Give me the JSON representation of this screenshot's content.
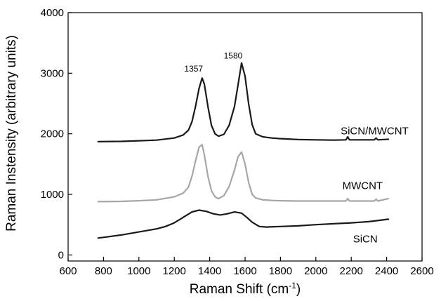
{
  "chart_data": {
    "type": "line",
    "title": "",
    "xlabel": "Raman Shift (cm",
    "xlabel_sup": "-1",
    "xlabel_end": ")",
    "ylabel": "Raman Instensity (arbitrary units)",
    "xlim": [
      600,
      2600
    ],
    "ylim": [
      -100,
      4000
    ],
    "xticks": [
      600,
      800,
      1000,
      1200,
      1400,
      1600,
      1800,
      2000,
      2200,
      2400,
      2600
    ],
    "yticks": [
      0,
      1000,
      2000,
      3000,
      4000
    ],
    "grid": false,
    "annotations": [
      {
        "text": "1357",
        "x": 1357,
        "y": 3030
      },
      {
        "text": "1580",
        "x": 1580,
        "y": 3240
      }
    ],
    "series": [
      {
        "name": "SiCN/MWCNT",
        "color": "#1a1a1a",
        "label_pos": [
          2140,
          2050
        ],
        "x": [
          770,
          900,
          1000,
          1100,
          1200,
          1250,
          1280,
          1300,
          1320,
          1340,
          1357,
          1370,
          1390,
          1410,
          1430,
          1450,
          1480,
          1510,
          1540,
          1560,
          1580,
          1600,
          1620,
          1640,
          1660,
          1700,
          1750,
          1800,
          1900,
          2000,
          2100,
          2170,
          2180,
          2190,
          2300,
          2330,
          2340,
          2350,
          2410
        ],
        "y": [
          1870,
          1875,
          1885,
          1895,
          1930,
          1980,
          2060,
          2200,
          2450,
          2750,
          2920,
          2820,
          2450,
          2140,
          2000,
          1960,
          1990,
          2140,
          2450,
          2800,
          3170,
          2950,
          2500,
          2150,
          2000,
          1950,
          1930,
          1920,
          1905,
          1900,
          1895,
          1900,
          1950,
          1900,
          1900,
          1900,
          1930,
          1900,
          1910
        ]
      },
      {
        "name": "MWCNT",
        "color": "#a6a6a6",
        "label_pos": [
          2150,
          1145
        ],
        "x": [
          770,
          900,
          1000,
          1100,
          1200,
          1250,
          1280,
          1300,
          1320,
          1340,
          1357,
          1370,
          1390,
          1410,
          1430,
          1450,
          1480,
          1510,
          1540,
          1560,
          1580,
          1600,
          1620,
          1640,
          1660,
          1700,
          1750,
          1800,
          1900,
          2000,
          2100,
          2170,
          2180,
          2190,
          2300,
          2330,
          2340,
          2350,
          2410
        ],
        "y": [
          880,
          885,
          895,
          910,
          960,
          1020,
          1120,
          1300,
          1550,
          1780,
          1820,
          1650,
          1300,
          1060,
          960,
          930,
          980,
          1130,
          1400,
          1620,
          1700,
          1500,
          1200,
          1000,
          940,
          910,
          900,
          895,
          890,
          890,
          890,
          890,
          930,
          890,
          890,
          890,
          920,
          890,
          930
        ]
      },
      {
        "name": "SiCN",
        "color": "#1a1a1a",
        "label_pos": [
          2210,
          265
        ],
        "x": [
          770,
          800,
          900,
          1000,
          1100,
          1150,
          1200,
          1250,
          1300,
          1340,
          1380,
          1420,
          1460,
          1500,
          1540,
          1580,
          1610,
          1640,
          1680,
          1720,
          1800,
          1900,
          2000,
          2100,
          2200,
          2300,
          2410
        ],
        "y": [
          280,
          290,
          330,
          380,
          430,
          470,
          530,
          620,
          710,
          740,
          720,
          680,
          660,
          680,
          710,
          690,
          620,
          540,
          470,
          460,
          470,
          480,
          500,
          515,
          530,
          550,
          590
        ]
      }
    ]
  }
}
